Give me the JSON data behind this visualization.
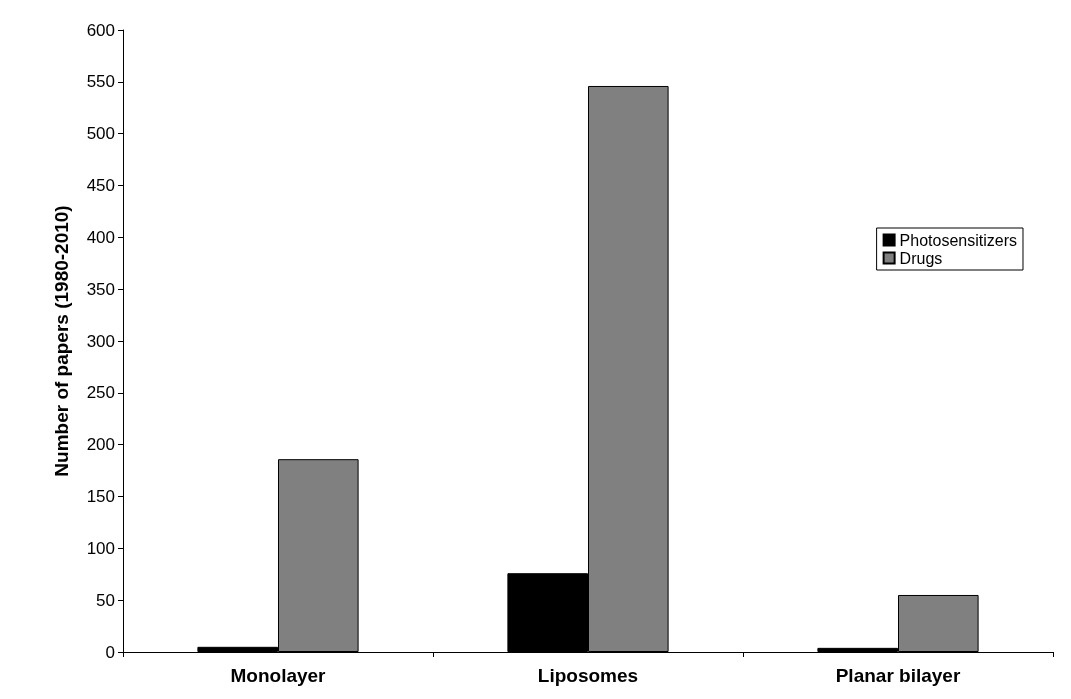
{
  "chart_data": {
    "type": "bar",
    "ylabel": "Number of papers (1980-2010)",
    "categories": [
      "Monolayer",
      "Liposomes",
      "Planar bilayer"
    ],
    "series": [
      {
        "name": "Photosensitizers",
        "color": "#000000",
        "values": [
          5,
          76,
          4
        ]
      },
      {
        "name": "Drugs",
        "color": "#808080",
        "values": [
          186,
          546,
          55
        ]
      }
    ],
    "ylim": [
      0,
      600
    ],
    "yticks": [
      0,
      50,
      100,
      150,
      200,
      250,
      300,
      350,
      400,
      450,
      500,
      550,
      600
    ],
    "grid": false,
    "legend": "right"
  }
}
